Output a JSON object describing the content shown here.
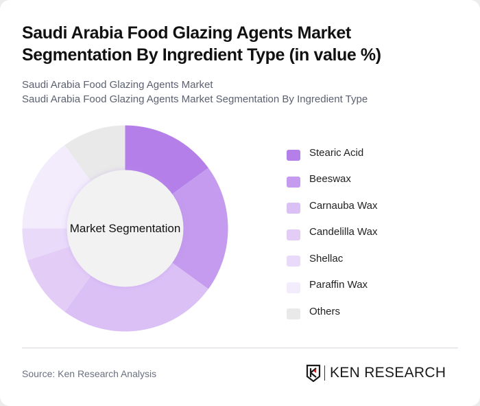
{
  "header": {
    "title": "Saudi Arabia Food Glazing Agents Market Segmentation By Ingredient Type (in value %)",
    "subtitle_line1": "Saudi Arabia Food Glazing Agents Market",
    "subtitle_line2": "Saudi Arabia Food Glazing Agents Market Segmentation By Ingredient Type"
  },
  "chart": {
    "center_label": "Market Segmentation"
  },
  "legend": [
    {
      "label": "Stearic Acid",
      "color": "#b57fe9"
    },
    {
      "label": "Beeswax",
      "color": "#c49bee"
    },
    {
      "label": "Carnauba Wax",
      "color": "#dbc0f6"
    },
    {
      "label": "Candelilla Wax",
      "color": "#e3cdf7"
    },
    {
      "label": "Shellac",
      "color": "#e9dafa"
    },
    {
      "label": "Paraffin Wax",
      "color": "#f3ecfc"
    },
    {
      "label": "Others",
      "color": "#e9e9e9"
    }
  ],
  "footer": {
    "source": "Source: Ken Research Analysis",
    "logo_text": "KEN RESEARCH"
  },
  "chart_data": {
    "type": "pie",
    "title": "Saudi Arabia Food Glazing Agents Market Segmentation By Ingredient Type (in value %)",
    "subtitle": "Saudi Arabia Food Glazing Agents Market Segmentation By Ingredient Type",
    "donut": true,
    "center_label": "Market Segmentation",
    "categories": [
      "Stearic Acid",
      "Beeswax",
      "Carnauba Wax",
      "Candelilla Wax",
      "Shellac",
      "Paraffin Wax",
      "Others"
    ],
    "values": [
      15,
      20,
      25,
      10,
      5,
      15,
      10
    ],
    "colors": [
      "#b57fe9",
      "#c49bee",
      "#dbc0f6",
      "#e3cdf7",
      "#e9dafa",
      "#f3ecfc",
      "#e9e9e9"
    ],
    "legend_position": "right",
    "unit": "%"
  }
}
